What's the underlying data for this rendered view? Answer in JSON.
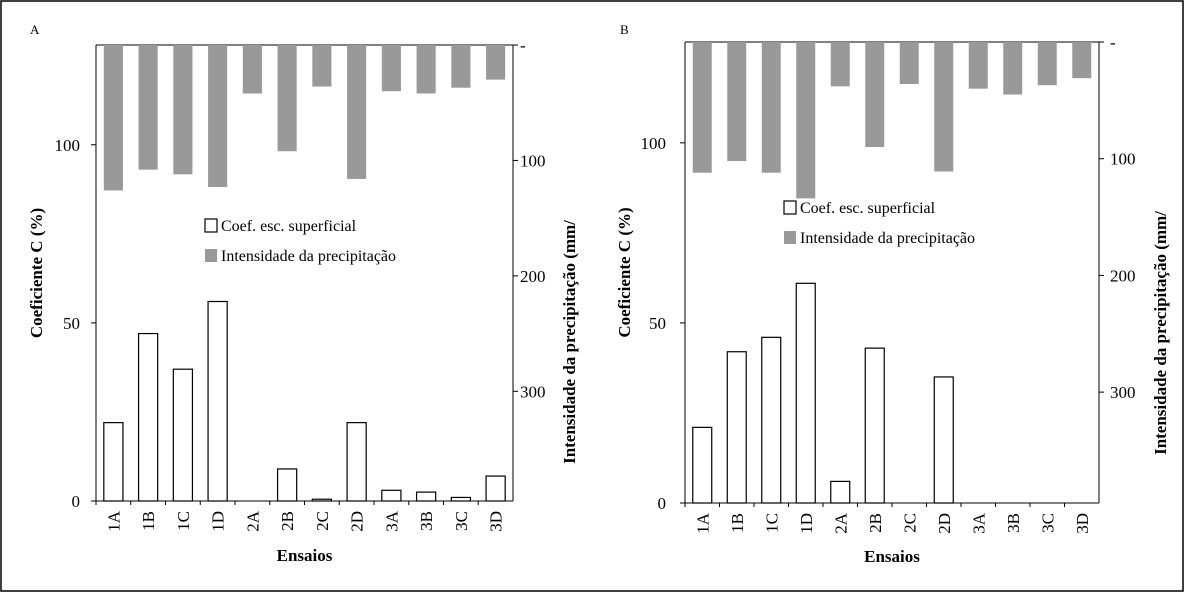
{
  "chart_data": [
    {
      "type": "bar",
      "panel_label": "A",
      "categories": [
        "1A",
        "1B",
        "1C",
        "1D",
        "2A",
        "2B",
        "2C",
        "2D",
        "3A",
        "3B",
        "3C",
        "3D"
      ],
      "xlabel": "Ensaios",
      "ylabel": "Coeficiente C (%)",
      "y2label": "Intensidade da precipitação  (mm/",
      "ylim": [
        0,
        128
      ],
      "y2lim": [
        0,
        395
      ],
      "y2_inverted": true,
      "yticks": [
        "0",
        "50",
        "100"
      ],
      "y2ticks": [
        "-",
        "100",
        "200",
        "300"
      ],
      "series": [
        {
          "name": "Coef.  esc. superficial",
          "axis": "left",
          "color": "#ffffff",
          "values": [
            22,
            47,
            37,
            56,
            0,
            9,
            0.5,
            22,
            3,
            2.5,
            1,
            7
          ]
        },
        {
          "name": "Intensidade da precipitação",
          "axis": "right",
          "color": "#999999",
          "values": [
            126,
            108,
            112,
            123,
            42,
            92,
            36,
            116,
            40,
            42,
            37,
            30
          ]
        }
      ],
      "legend_position": "center"
    },
    {
      "type": "bar",
      "panel_label": "B",
      "categories": [
        "1A",
        "1B",
        "1C",
        "1D",
        "2A",
        "2B",
        "2C",
        "2D",
        "3A",
        "3B",
        "3C",
        "3D"
      ],
      "xlabel": "Ensaios",
      "ylabel": "Coeficiente C (%)",
      "y2label": "Intensidade da precipitação (mm/",
      "ylim": [
        0,
        128
      ],
      "y2lim": [
        0,
        395
      ],
      "y2_inverted": true,
      "yticks": [
        "0",
        "50",
        "100"
      ],
      "y2ticks": [
        "-",
        "100",
        "200",
        "300"
      ],
      "series": [
        {
          "name": "Coef.  esc. superficial",
          "axis": "left",
          "color": "#ffffff",
          "values": [
            21,
            42,
            46,
            61,
            6,
            43,
            0,
            35,
            0,
            0,
            0,
            0
          ]
        },
        {
          "name": "Intensidade da precipitação",
          "axis": "right",
          "color": "#999999",
          "values": [
            112,
            102,
            112,
            134,
            38,
            90,
            36,
            111,
            40,
            45,
            37,
            31
          ]
        }
      ],
      "legend_position": "center"
    }
  ]
}
